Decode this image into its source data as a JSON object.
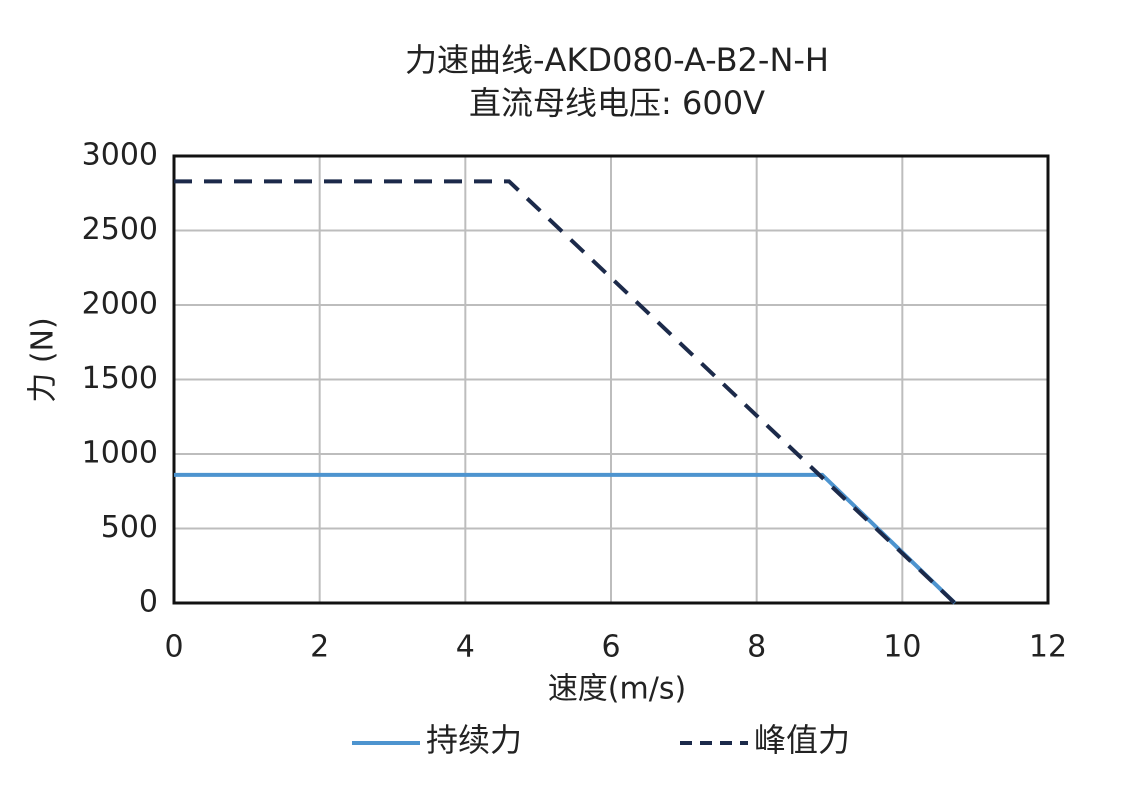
{
  "chart_data": {
    "type": "line",
    "title": "力速曲线-AKD080-A-B2-N-H",
    "subtitle": "直流母线电压: 600V",
    "xlabel": "速度(m/s)",
    "ylabel": "力 (N)",
    "xlim": [
      0,
      12
    ],
    "xticks": [
      0,
      2,
      4,
      6,
      8,
      10,
      12
    ],
    "ylim": [
      0,
      3000
    ],
    "yticks": [
      0,
      500,
      1000,
      1500,
      2000,
      2500,
      3000
    ],
    "grid": true,
    "legend": "bottom",
    "series": [
      {
        "name": "持续力",
        "color": "#4d94cf",
        "dash": false,
        "x": [
          0,
          8.9,
          10.72
        ],
        "values": [
          860,
          860,
          0
        ]
      },
      {
        "name": "峰值力",
        "color": "#1c2a4a",
        "dash": true,
        "x": [
          0,
          4.6,
          10.72
        ],
        "values": [
          2830,
          2830,
          0
        ]
      }
    ]
  }
}
